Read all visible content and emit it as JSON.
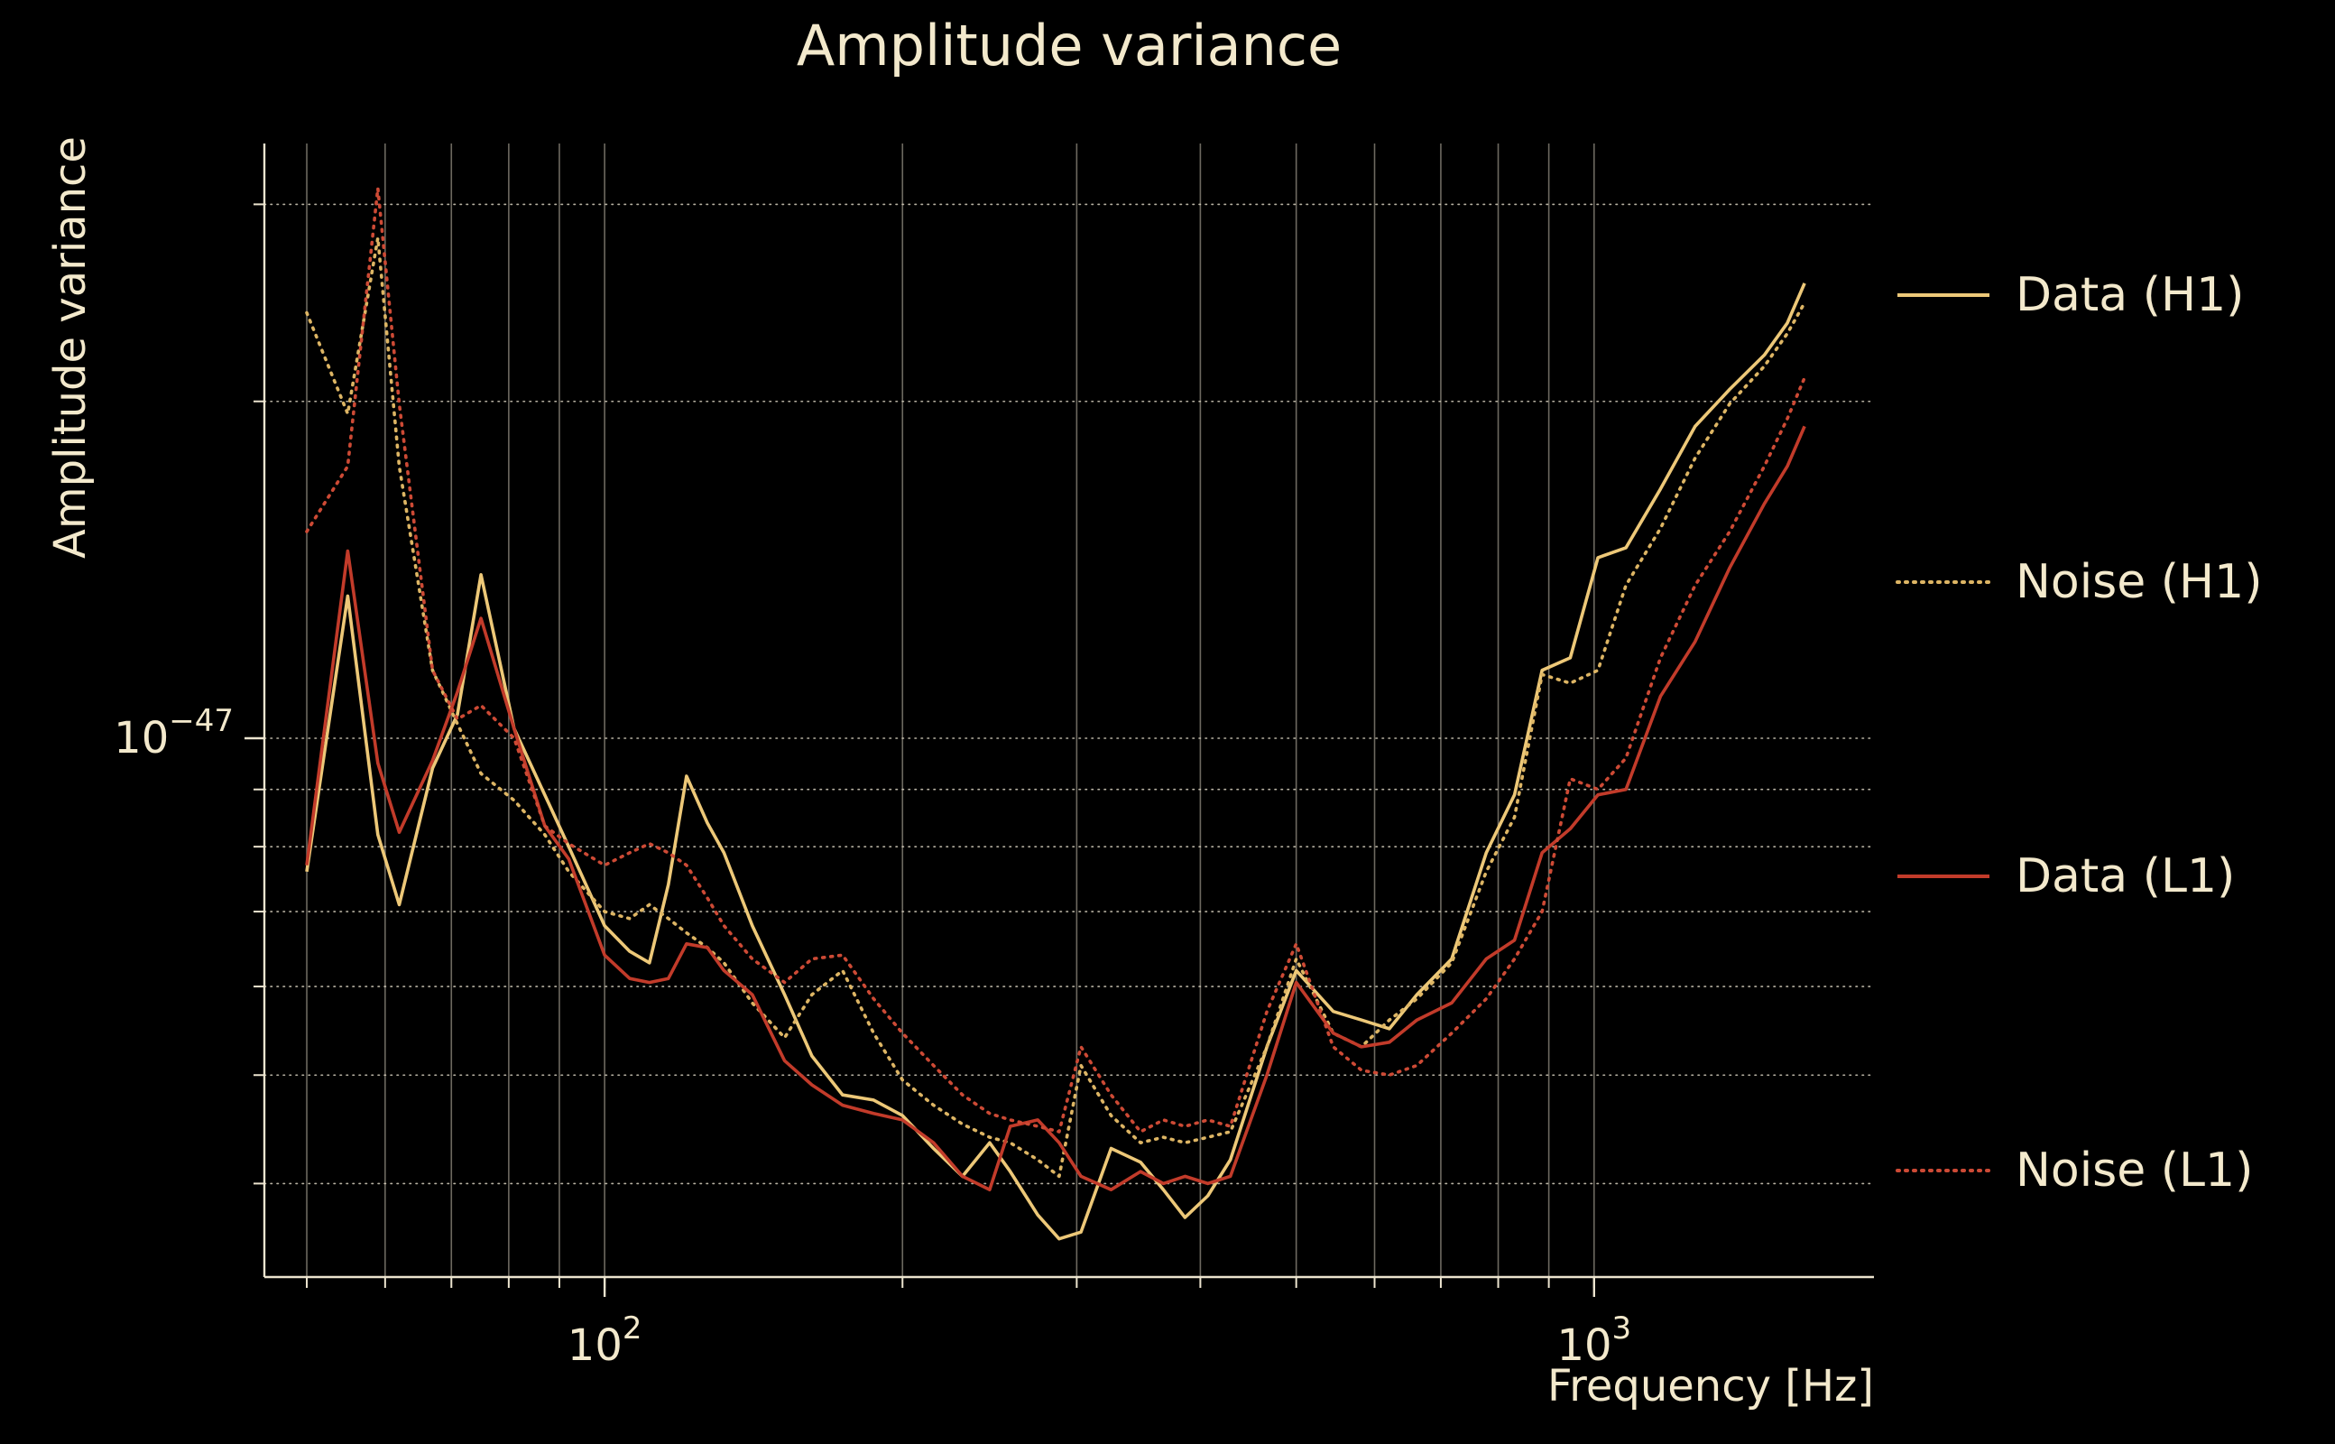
{
  "chart_data": {
    "type": "line",
    "title": "Amplitude variance",
    "xlabel": "Frequency [Hz]",
    "ylabel": "Amplitude variance",
    "x_scale": "log",
    "y_scale": "log",
    "xlim": [
      45.3,
      1918
    ],
    "ylim": [
      3.3e-48,
      3.4e-47
    ],
    "value_unit": "1e-48",
    "x": [
      50,
      55,
      59,
      62,
      67,
      71,
      75,
      81,
      87,
      92,
      100,
      106,
      111,
      116,
      121,
      127,
      132,
      141,
      152,
      162,
      174,
      187,
      200,
      215,
      230,
      245,
      257,
      274,
      288,
      303,
      325,
      348,
      367,
      386,
      407,
      429,
      467,
      500,
      545,
      582,
      621,
      662,
      718,
      778,
      831,
      886,
      946,
      1009,
      1077,
      1167,
      1265,
      1371,
      1486,
      1568,
      1632
    ],
    "series": [
      {
        "name": "Data (H1)",
        "color": "#edc878",
        "style": "solid",
        "values": [
          7.6,
          13.4,
          8.2,
          7.1,
          9.4,
          10.5,
          14.0,
          10.2,
          8.9,
          8.0,
          6.8,
          6.45,
          6.3,
          7.4,
          9.25,
          8.4,
          7.9,
          6.8,
          5.9,
          5.2,
          4.8,
          4.75,
          4.6,
          4.3,
          4.06,
          4.35,
          4.1,
          3.75,
          3.57,
          3.62,
          4.3,
          4.18,
          3.95,
          3.73,
          3.9,
          4.2,
          5.3,
          6.2,
          5.7,
          5.6,
          5.5,
          5.9,
          6.35,
          7.9,
          8.9,
          11.5,
          11.8,
          14.5,
          14.8,
          16.7,
          19.0,
          20.5,
          22.0,
          23.5,
          25.5
        ]
      },
      {
        "name": "Noise (H1)",
        "color": "#ddb564",
        "style": "dotted",
        "values": [
          24.0,
          19.5,
          28.0,
          17.5,
          11.5,
          10.3,
          9.3,
          8.8,
          8.2,
          7.6,
          7.0,
          6.9,
          7.1,
          6.9,
          6.7,
          6.5,
          6.3,
          5.8,
          5.4,
          5.9,
          6.2,
          5.45,
          4.95,
          4.7,
          4.52,
          4.4,
          4.35,
          4.2,
          4.06,
          5.1,
          4.6,
          4.35,
          4.4,
          4.35,
          4.4,
          4.45,
          5.3,
          6.35,
          5.45,
          5.3,
          5.6,
          5.85,
          6.3,
          7.6,
          8.5,
          11.4,
          11.2,
          11.5,
          13.7,
          15.4,
          17.8,
          19.9,
          21.5,
          23.0,
          24.5
        ]
      },
      {
        "name": "Data (L1)",
        "color": "#c23b2a",
        "style": "solid",
        "values": [
          7.7,
          14.7,
          9.5,
          8.24,
          9.55,
          11.0,
          12.8,
          10.2,
          8.35,
          7.8,
          6.4,
          6.1,
          6.05,
          6.1,
          6.55,
          6.5,
          6.2,
          5.9,
          5.15,
          4.9,
          4.7,
          4.62,
          4.56,
          4.35,
          4.06,
          3.95,
          4.5,
          4.56,
          4.35,
          4.06,
          3.95,
          4.1,
          4.0,
          4.06,
          4.0,
          4.06,
          5.0,
          6.05,
          5.45,
          5.3,
          5.35,
          5.6,
          5.8,
          6.35,
          6.6,
          7.9,
          8.3,
          8.9,
          9.0,
          10.9,
          12.2,
          14.2,
          16.2,
          17.5,
          19.0
        ]
      },
      {
        "name": "Noise (L1)",
        "color": "#cd4a35",
        "style": "dotted",
        "values": [
          15.3,
          17.5,
          31.0,
          19.9,
          11.5,
          10.4,
          10.7,
          10.0,
          8.35,
          8.05,
          7.7,
          7.9,
          8.05,
          7.9,
          7.7,
          7.2,
          6.8,
          6.35,
          6.05,
          6.35,
          6.4,
          5.85,
          5.45,
          5.1,
          4.8,
          4.62,
          4.56,
          4.5,
          4.45,
          5.3,
          4.8,
          4.45,
          4.56,
          4.5,
          4.56,
          4.5,
          5.7,
          6.55,
          5.3,
          5.05,
          5.0,
          5.1,
          5.45,
          5.85,
          6.35,
          7.0,
          9.2,
          9.0,
          9.6,
          11.8,
          13.7,
          15.3,
          17.5,
          19.3,
          21.0
        ]
      }
    ],
    "xticks": [
      {
        "value": 100,
        "base": "10",
        "exp": "2"
      },
      {
        "value": 1000,
        "base": "10",
        "exp": "3"
      }
    ],
    "yticks": [
      {
        "value_1e48": 10,
        "base": "10",
        "exp": "−47"
      }
    ],
    "grid": {
      "x_minor": [
        50,
        60,
        70,
        80,
        90,
        100,
        200,
        300,
        400,
        500,
        600,
        700,
        800,
        900,
        1000
      ],
      "y_minor_1e48": [
        4,
        5,
        6,
        7,
        8,
        9,
        10,
        20,
        30
      ]
    },
    "legend_position": "right",
    "colors": {
      "background": "#000000",
      "text": "#f3e9cc",
      "grid": "#d9d2c0",
      "spine": "#ece4cf"
    }
  }
}
